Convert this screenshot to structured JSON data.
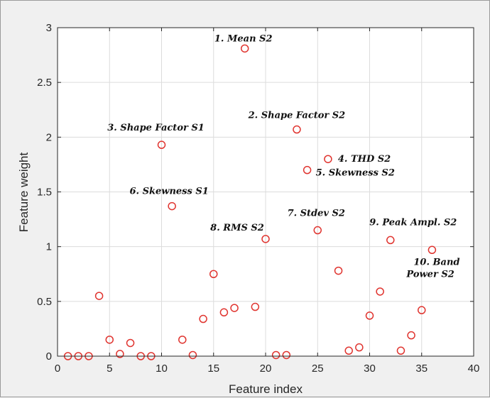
{
  "chart_data": {
    "type": "scatter",
    "xlabel": "Feature index",
    "ylabel": "Feature weight",
    "xlim": [
      0,
      40
    ],
    "ylim": [
      0,
      3
    ],
    "xticks": [
      0,
      5,
      10,
      15,
      20,
      25,
      30,
      35,
      40
    ],
    "yticks": [
      0,
      0.5,
      1,
      1.5,
      2,
      2.5,
      3
    ],
    "grid": true,
    "marker": "open-circle",
    "marker_color": "#e0342f",
    "points": [
      {
        "x": 1,
        "y": 0.0
      },
      {
        "x": 2,
        "y": 0.0
      },
      {
        "x": 3,
        "y": 0.0
      },
      {
        "x": 4,
        "y": 0.55
      },
      {
        "x": 5,
        "y": 0.15
      },
      {
        "x": 6,
        "y": 0.02
      },
      {
        "x": 7,
        "y": 0.12
      },
      {
        "x": 8,
        "y": 0.0
      },
      {
        "x": 9,
        "y": 0.0
      },
      {
        "x": 10,
        "y": 1.93
      },
      {
        "x": 11,
        "y": 1.37
      },
      {
        "x": 12,
        "y": 0.15
      },
      {
        "x": 13,
        "y": 0.01
      },
      {
        "x": 14,
        "y": 0.34
      },
      {
        "x": 15,
        "y": 0.75
      },
      {
        "x": 16,
        "y": 0.4
      },
      {
        "x": 17,
        "y": 0.44
      },
      {
        "x": 18,
        "y": 2.81
      },
      {
        "x": 19,
        "y": 0.45
      },
      {
        "x": 20,
        "y": 1.07
      },
      {
        "x": 21,
        "y": 0.01
      },
      {
        "x": 22,
        "y": 0.01
      },
      {
        "x": 23,
        "y": 2.07
      },
      {
        "x": 24,
        "y": 1.7
      },
      {
        "x": 25,
        "y": 1.15
      },
      {
        "x": 26,
        "y": 1.8
      },
      {
        "x": 27,
        "y": 0.78
      },
      {
        "x": 28,
        "y": 0.05
      },
      {
        "x": 29,
        "y": 0.08
      },
      {
        "x": 30,
        "y": 0.37
      },
      {
        "x": 31,
        "y": 0.59
      },
      {
        "x": 32,
        "y": 1.06
      },
      {
        "x": 33,
        "y": 0.05
      },
      {
        "x": 34,
        "y": 0.19
      },
      {
        "x": 35,
        "y": 0.42
      },
      {
        "x": 36,
        "y": 0.97
      }
    ],
    "annotations": [
      {
        "lines": [
          "1. Mean S2"
        ],
        "x": 18,
        "y": 2.81
      },
      {
        "lines": [
          "2. Shape Factor S2"
        ],
        "x": 23,
        "y": 2.07
      },
      {
        "lines": [
          "3. Shape Factor S1"
        ],
        "x": 10,
        "y": 1.93
      },
      {
        "lines": [
          "4. THD S2"
        ],
        "x": 26,
        "y": 1.8
      },
      {
        "lines": [
          "5. Skewness S2"
        ],
        "x": 24,
        "y": 1.7
      },
      {
        "lines": [
          "6. Skewness S1"
        ],
        "x": 11,
        "y": 1.37
      },
      {
        "lines": [
          "7. Stdev S2"
        ],
        "x": 25,
        "y": 1.15
      },
      {
        "lines": [
          "8. RMS S2"
        ],
        "x": 20,
        "y": 1.07
      },
      {
        "lines": [
          "9. Peak Ampl. S2"
        ],
        "x": 32,
        "y": 1.06
      },
      {
        "lines": [
          "10. Band",
          "Power S2"
        ],
        "x": 36,
        "y": 0.97
      }
    ]
  }
}
